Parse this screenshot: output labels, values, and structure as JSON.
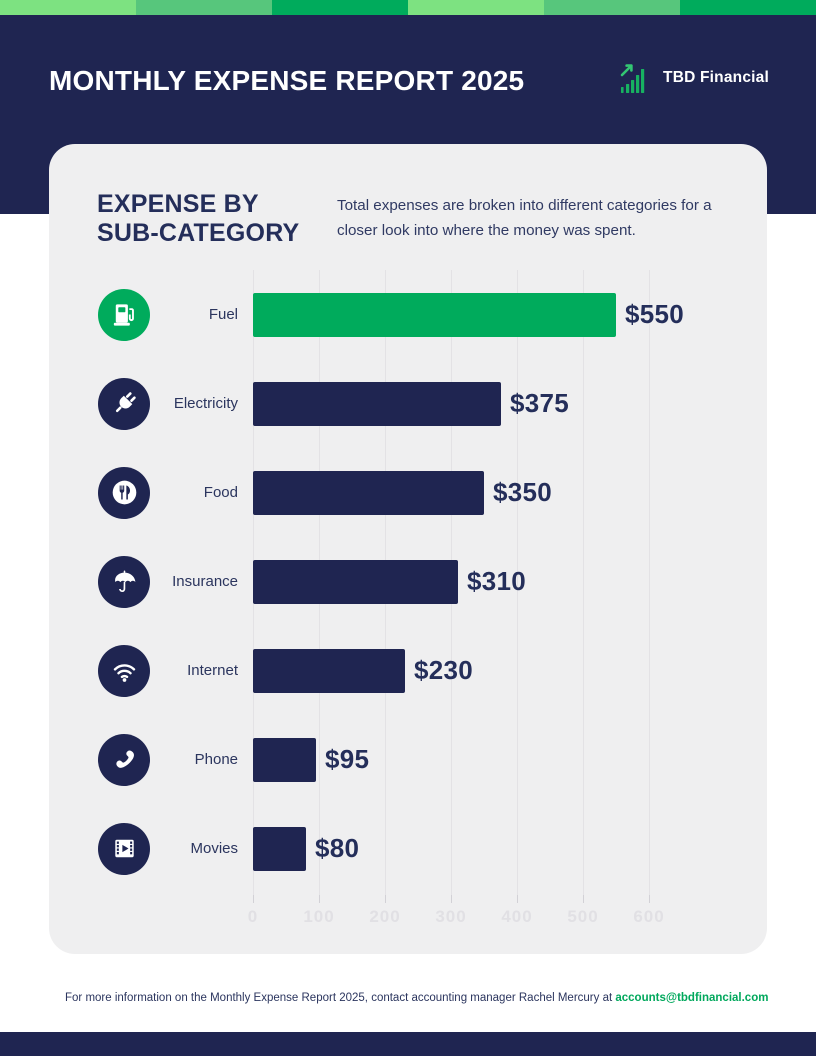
{
  "page": {
    "background": "#ffffff",
    "accent_navy": "#1f2551",
    "accent_green": "#00ab5c"
  },
  "top_strip": {
    "colors": [
      "#7de281",
      "#57c67c",
      "#00ab5c",
      "#7de281",
      "#57c67c",
      "#00ab5c"
    ]
  },
  "header": {
    "title": "MONTHLY EXPENSE REPORT 2025",
    "logo_icon": "growth-chart-icon",
    "logo_text": "TBD Financial"
  },
  "card": {
    "heading_line1": "EXPENSE BY",
    "heading_line2": "SUB-CATEGORY",
    "description": "Total expenses are broken into different categories for a closer look into where the money was spent."
  },
  "chart_data": {
    "type": "bar",
    "orientation": "horizontal",
    "title": "Expense by Sub-Category",
    "xlabel": "",
    "ylabel": "",
    "xlim": [
      0,
      600
    ],
    "x_ticks": [
      0,
      100,
      200,
      300,
      400,
      500,
      600
    ],
    "grid": "vertical",
    "legend": "none",
    "categories": [
      "Fuel",
      "Electricity",
      "Food",
      "Insurance",
      "Internet",
      "Phone",
      "Movies"
    ],
    "values": [
      550,
      375,
      350,
      310,
      230,
      95,
      80
    ],
    "value_labels": [
      "$550",
      "$375",
      "$350",
      "$310",
      "$230",
      "$95",
      "$80"
    ],
    "rows": [
      {
        "label": "Fuel",
        "value": 550,
        "value_label": "$550",
        "icon": "fuel-icon",
        "icon_bg": "#00ab5c",
        "bar_color": "#00ab5c"
      },
      {
        "label": "Electricity",
        "value": 375,
        "value_label": "$375",
        "icon": "plug-icon",
        "icon_bg": "#1f2551",
        "bar_color": "#1f2551"
      },
      {
        "label": "Food",
        "value": 350,
        "value_label": "$350",
        "icon": "food-icon",
        "icon_bg": "#1f2551",
        "bar_color": "#1f2551"
      },
      {
        "label": "Insurance",
        "value": 310,
        "value_label": "$310",
        "icon": "umbrella-icon",
        "icon_bg": "#1f2551",
        "bar_color": "#1f2551"
      },
      {
        "label": "Internet",
        "value": 230,
        "value_label": "$230",
        "icon": "wifi-icon",
        "icon_bg": "#1f2551",
        "bar_color": "#1f2551"
      },
      {
        "label": "Phone",
        "value": 95,
        "value_label": "$95",
        "icon": "phone-icon",
        "icon_bg": "#1f2551",
        "bar_color": "#1f2551"
      },
      {
        "label": "Movies",
        "value": 80,
        "value_label": "$80",
        "icon": "movie-icon",
        "icon_bg": "#1f2551",
        "bar_color": "#1f2551"
      }
    ]
  },
  "footer": {
    "text": "For more information on the Monthly Expense Report 2025, contact accounting manager Rachel Mercury at",
    "email": "accounts@tbdfinancial.com"
  }
}
